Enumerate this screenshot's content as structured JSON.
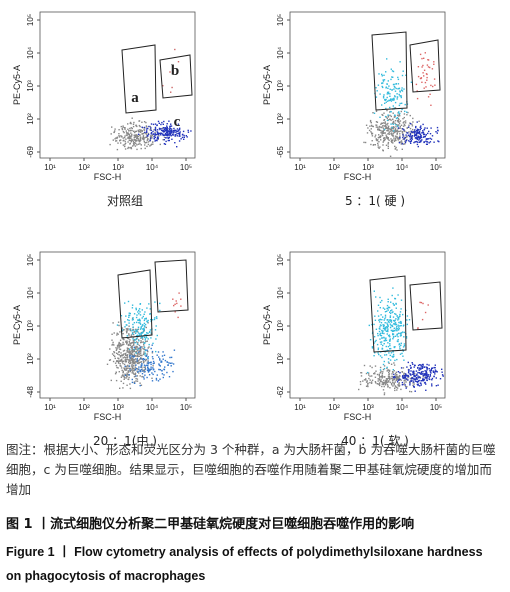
{
  "panels": [
    {
      "y_label": "PE-Cy5-A",
      "x_label": "FSC-H",
      "y_ticks": [
        "10⁵",
        "10⁴",
        "10³",
        "10²",
        "-69"
      ],
      "x_ticks": [
        "10¹",
        "10²",
        "10³",
        "10⁴",
        "10⁵"
      ],
      "caption": "对照组",
      "gate_labels": [
        "a",
        "b",
        "c"
      ]
    },
    {
      "y_label": "PE-Cy5-A",
      "x_label": "FSC-H",
      "y_ticks": [
        "10⁵",
        "10⁴",
        "10³",
        "10²",
        "-65"
      ],
      "x_ticks": [
        "10¹",
        "10²",
        "10³",
        "10⁴",
        "10⁵"
      ],
      "caption": "5 ：1( 硬 )"
    },
    {
      "y_label": "PE-Cy5-A",
      "x_label": "FSC-H",
      "y_ticks": [
        "10⁵",
        "10⁴",
        "10³",
        "10²",
        "-48"
      ],
      "x_ticks": [
        "10¹",
        "10²",
        "10³",
        "10⁴",
        "10⁵"
      ],
      "caption": "20 ：1(中 )"
    },
    {
      "y_label": "PE-Cy5-A",
      "x_label": "FSC-H",
      "y_ticks": [
        "10⁵",
        "10⁴",
        "10³",
        "10²",
        "-62"
      ],
      "x_ticks": [
        "10¹",
        "10²",
        "10³",
        "10⁴",
        "10⁵"
      ],
      "caption": "40 ：1( 软 )"
    }
  ],
  "note": "图注：根据大小、形态和荧光区分为 3 个种群，a 为大肠杆菌，b 为吞噬大肠杆菌的巨噬细胞，c 为巨噬细胞。结果显示，巨噬细胞的吞噬作用随着聚二甲基硅氧烷硬度的增加而增加",
  "title_cn": "图 1 丨流式细胞仪分析聚二甲基硅氧烷硬度对巨噬细胞吞噬作用的影响",
  "title_en": "Figure 1 丨 Flow cytometry analysis of effects of polydimethylsiloxane hardness on phagocytosis of macrophages"
}
